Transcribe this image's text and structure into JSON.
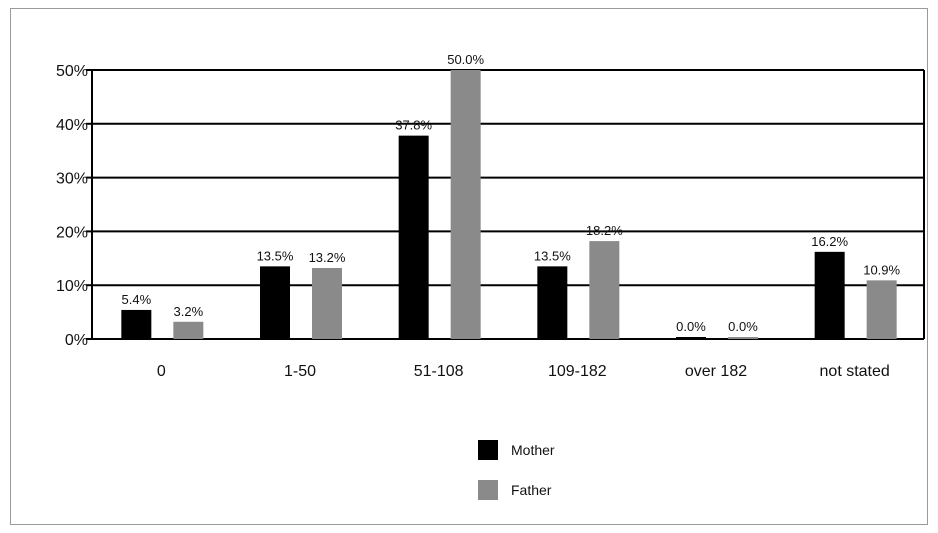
{
  "chart_data": {
    "type": "bar",
    "categories": [
      "0",
      "1-50",
      "51-108",
      "109-182",
      "over 182",
      "not stated"
    ],
    "series": [
      {
        "name": "Mother",
        "color": "#000000",
        "values": [
          5.4,
          13.5,
          37.8,
          13.5,
          0.0,
          16.2
        ],
        "labels": [
          "5.4%",
          "13.5%",
          "37.8%",
          "13.5%",
          "0.0%",
          "16.2%"
        ]
      },
      {
        "name": "Father",
        "color": "#8a8a8a",
        "values": [
          3.2,
          13.2,
          50.0,
          18.2,
          0.0,
          10.9
        ],
        "labels": [
          "3.2%",
          "13.2%",
          "50.0%",
          "18.2%",
          "0.0%",
          "10.9%"
        ]
      }
    ],
    "ylim": [
      0,
      50
    ],
    "yticks": [
      0,
      10,
      20,
      30,
      40,
      50
    ],
    "ytick_labels": [
      "0%",
      "10%",
      "20%",
      "30%",
      "40%",
      "50%"
    ],
    "grid": true,
    "legend_position": "bottom-center"
  }
}
